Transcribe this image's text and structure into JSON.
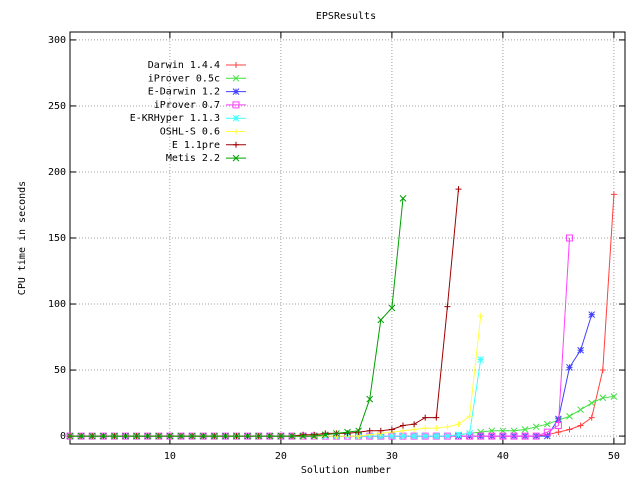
{
  "chart_data": {
    "type": "line",
    "title": "EPSResults",
    "x_label": "Solution number",
    "y_label": "CPU time in seconds",
    "xlim": [
      1,
      51
    ],
    "ylim": [
      -6,
      306
    ],
    "xticks": [
      10,
      20,
      30,
      40,
      50
    ],
    "yticks": [
      0,
      50,
      100,
      150,
      200,
      250,
      300
    ],
    "grid": true,
    "legend_position": "top left",
    "x": [
      1,
      2,
      3,
      4,
      5,
      6,
      7,
      8,
      9,
      10,
      11,
      12,
      13,
      14,
      15,
      16,
      17,
      18,
      19,
      20,
      21,
      22,
      23,
      24,
      25,
      26,
      27,
      28,
      29,
      30,
      31,
      32,
      33,
      34,
      35,
      36,
      37,
      38,
      39,
      40,
      41,
      42,
      43,
      44,
      45,
      46,
      47,
      48,
      49,
      50,
      51
    ],
    "series": [
      {
        "name": "Darwin 1.4.4",
        "color": "#ff4040",
        "marker": "plus",
        "values": [
          0,
          0,
          0,
          0,
          0,
          0,
          0,
          0,
          0,
          0,
          0,
          0,
          0,
          0,
          0,
          0,
          0,
          0,
          0,
          0,
          0,
          0,
          0,
          0,
          0,
          0,
          0,
          0,
          0,
          0,
          0,
          0,
          0,
          0,
          0,
          0,
          0,
          0,
          0,
          0,
          0,
          0,
          0,
          1,
          3,
          5,
          8,
          14,
          50,
          183,
          null
        ]
      },
      {
        "name": "iProver 0.5c",
        "color": "#40e040",
        "marker": "cross",
        "values": [
          0,
          0,
          0,
          0,
          0,
          0,
          0,
          0,
          0,
          0,
          0,
          0,
          0,
          0,
          0,
          0,
          0,
          0,
          0,
          0,
          0,
          0,
          0,
          0,
          0,
          0,
          0,
          0,
          0,
          0,
          0,
          0,
          0,
          0,
          0,
          1,
          2,
          3,
          4,
          4,
          4,
          5,
          7,
          9,
          12,
          15,
          20,
          25,
          29,
          30,
          null
        ]
      },
      {
        "name": "E-Darwin 1.2",
        "color": "#4040ff",
        "marker": "star",
        "values": [
          0,
          0,
          0,
          0,
          0,
          0,
          0,
          0,
          0,
          0,
          0,
          0,
          0,
          0,
          0,
          0,
          0,
          0,
          0,
          0,
          0,
          0,
          0,
          0,
          0,
          0,
          0,
          0,
          0,
          0,
          0,
          0,
          0,
          0,
          0,
          0,
          0,
          0,
          0,
          0,
          0,
          0,
          0,
          0,
          13,
          52,
          65,
          92,
          null,
          null,
          null
        ]
      },
      {
        "name": "iProver 0.7",
        "color": "#ff40ff",
        "marker": "square",
        "values": [
          0,
          0,
          0,
          0,
          0,
          0,
          0,
          0,
          0,
          0,
          0,
          0,
          0,
          0,
          0,
          0,
          0,
          0,
          0,
          0,
          0,
          0,
          0,
          0,
          0,
          0,
          0,
          0,
          0,
          0,
          0,
          0,
          0,
          0,
          0,
          0,
          0,
          0,
          0,
          0,
          0,
          0,
          0,
          3,
          8,
          150,
          null,
          null,
          null,
          null,
          null
        ]
      },
      {
        "name": "E-KRHyper 1.1.3",
        "color": "#40ffff",
        "marker": "star",
        "values": [
          0,
          0,
          0,
          0,
          0,
          0,
          0,
          0,
          0,
          0,
          0,
          0,
          0,
          0,
          0,
          0,
          0,
          0,
          0,
          0,
          0,
          0,
          0,
          0,
          0,
          0,
          0,
          0,
          0,
          0,
          0,
          0,
          0,
          0,
          0,
          1,
          2,
          58,
          null,
          null,
          null,
          null,
          null,
          null,
          null,
          null,
          null,
          null,
          null,
          null,
          null
        ]
      },
      {
        "name": "OSHL-S 0.6",
        "color": "#ffff40",
        "marker": "plus",
        "values": [
          0,
          0,
          0,
          0,
          0,
          0,
          0,
          0,
          0,
          0,
          0,
          0,
          0,
          0,
          0,
          0,
          0,
          0,
          0,
          0,
          0,
          0,
          0,
          0,
          0,
          0,
          0,
          1,
          2,
          3,
          4,
          5,
          6,
          6,
          7,
          9,
          15,
          91,
          null,
          null,
          null,
          null,
          null,
          null,
          null,
          null,
          null,
          null,
          null,
          null,
          null
        ]
      },
      {
        "name": "E 1.1pre",
        "color": "#a00000",
        "marker": "plus",
        "values": [
          0,
          0,
          0,
          0,
          0,
          0,
          0,
          0,
          0,
          0,
          0,
          0,
          0,
          0,
          0,
          0,
          0,
          0,
          0,
          0,
          0,
          1,
          1,
          2,
          2,
          2,
          3,
          4,
          4,
          5,
          8,
          9,
          14,
          14,
          98,
          187,
          null,
          null,
          null,
          null,
          null,
          null,
          null,
          null,
          null,
          null,
          null,
          null,
          null,
          null,
          null
        ]
      },
      {
        "name": "Metis 2.2",
        "color": "#00a000",
        "marker": "cross",
        "values": [
          0,
          0,
          0,
          0,
          0,
          0,
          0,
          0,
          0,
          0,
          0,
          0,
          0,
          0,
          0,
          0,
          0,
          0,
          0,
          0,
          0,
          0,
          0,
          1,
          2,
          3,
          4,
          28,
          88,
          97,
          180,
          null,
          null,
          null,
          null,
          null,
          null,
          null,
          null,
          null,
          null,
          null,
          null,
          null,
          null,
          null,
          null,
          null,
          null,
          null,
          null
        ]
      }
    ]
  }
}
